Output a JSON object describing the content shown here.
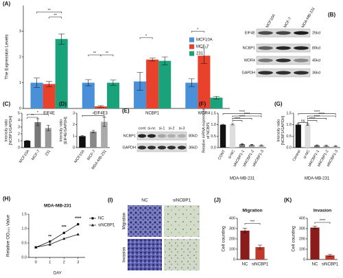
{
  "chart_data": [
    {
      "type": "bar",
      "panel": "(A)",
      "ylabel": "The Expression Levels",
      "categories": [
        "EIF4E",
        "EIF4E3",
        "NCBP1",
        "WDR4"
      ],
      "series": [
        {
          "name": "MCF10A",
          "color": "#4a90d9",
          "values": [
            1.0,
            1.0,
            1.05,
            1.0
          ],
          "errors": [
            0.18,
            0.12,
            0.35,
            0.15
          ]
        },
        {
          "name": "MCF-7",
          "color": "#e8412c",
          "values": [
            0.95,
            0.08,
            1.9,
            2.05
          ],
          "errors": [
            0.1,
            0.03,
            0.06,
            0.3
          ]
        },
        {
          "name": "231",
          "color": "#1aa37a",
          "values": [
            2.7,
            1.0,
            1.85,
            0.42
          ],
          "errors": [
            0.2,
            0.1,
            0.15,
            0.05
          ]
        }
      ],
      "ylim": [
        0,
        4
      ],
      "yticks": [
        0,
        1,
        2,
        3
      ],
      "legend": "right",
      "annotations": [
        "**",
        "**",
        "**",
        "**",
        "*",
        "*"
      ]
    },
    {
      "type": "bar",
      "panel": "(C)",
      "ylabel": [
        "Intensity ratio",
        "[NCBP1/GAPDH]"
      ],
      "categories": [
        "MCF10A",
        "MCF-7",
        "231"
      ],
      "values": [
        1.0,
        3.7,
        2.85
      ],
      "errors": [
        0.05,
        0.5,
        0.4
      ],
      "colors": [
        "#111111",
        "#777777",
        "#999999"
      ],
      "ylim": [
        0,
        5
      ],
      "yticks": [
        0,
        1,
        2,
        3,
        4,
        5
      ],
      "annotations": [
        "**",
        "*"
      ]
    },
    {
      "type": "bar",
      "panel": "(D)",
      "ylabel": [
        "Intensity ratio",
        "[EIF4E/GAPDH]"
      ],
      "categories": [
        "MCF10A",
        "MCF-7",
        "MDA-MB-231"
      ],
      "values": [
        1.0,
        1.4,
        2.25
      ],
      "errors": [
        0.05,
        0.1,
        0.4
      ],
      "colors": [
        "#111111",
        "#888888",
        "#aaaaaa"
      ],
      "ylim": [
        0,
        3
      ],
      "yticks": [
        0,
        1,
        2,
        3
      ],
      "annotations": [
        "*"
      ]
    },
    {
      "type": "bar",
      "panel": "(F)",
      "ylabel": [
        "Relative mRNA expression",
        "of NCBP1"
      ],
      "xlabel": "MDA-MB-231",
      "categories": [
        "CONT",
        "si-NC",
        "siNCBP1-1",
        "siNCBP1-2",
        "siNCBP1-3"
      ],
      "values": [
        1.0,
        1.02,
        0.15,
        0.12,
        0.1
      ],
      "errors": [
        0.02,
        0.03,
        0.02,
        0.02,
        0.02
      ],
      "colors": [
        "#111111",
        "#dddddd",
        "#777777",
        "#999999",
        "#bbbbbb"
      ],
      "ylim": [
        0,
        1.5
      ],
      "yticks": [
        {
          "value": 0,
          "label": "0.0"
        },
        0.5,
        {
          "value": 1,
          "label": "1.0"
        },
        1.5
      ],
      "annotations": [
        "****",
        "****",
        "****",
        "****"
      ]
    },
    {
      "type": "bar",
      "panel": "(G)",
      "ylabel": [
        "Intensity ratio",
        "[NCBP1/GAPDH]"
      ],
      "xlabel": "MDA-MB-231",
      "categories": [
        "Control",
        "si-NC",
        "siNCBP1-1",
        "siNCBP1-2",
        "siNCBP1-3"
      ],
      "values": [
        1.0,
        1.0,
        0.1,
        0.08,
        0.07
      ],
      "errors": [
        0.03,
        0.03,
        0.02,
        0.02,
        0.02
      ],
      "colors": [
        "#111111",
        "#dddddd",
        "#777777",
        "#999999",
        "#bbbbbb"
      ],
      "ylim": [
        0,
        1.5
      ],
      "yticks": [
        {
          "value": 0,
          "label": "0.0"
        },
        0.5,
        {
          "value": 1,
          "label": "1.0"
        },
        1.5
      ],
      "annotations": [
        "ns",
        "****",
        "****",
        "****",
        "****"
      ]
    },
    {
      "type": "line",
      "panel": "(H)",
      "title": "MDA-MB-231",
      "ylabel": "Relative OD₄₅₀ Value",
      "xlabel": "DAY",
      "x": [
        0,
        1,
        2,
        3
      ],
      "xlim": [
        -0.5,
        3.5
      ],
      "xticks": [
        0,
        1,
        2,
        3
      ],
      "series": [
        {
          "name": "NC",
          "color": "#111111",
          "values": [
            0.35,
            0.55,
            0.85,
            1.15
          ]
        },
        {
          "name": "siNCBP1",
          "color": "#111111",
          "values": [
            0.35,
            0.45,
            0.65,
            0.8
          ]
        }
      ],
      "ylim": [
        0,
        1.5
      ],
      "yticks": [
        {
          "value": 0,
          "label": "0.0"
        },
        0.5,
        {
          "value": 1,
          "label": "1.0"
        },
        1.5
      ],
      "legend": "right",
      "annotations": [
        "**",
        "***",
        "****"
      ]
    },
    {
      "type": "bar",
      "panel": "(J)",
      "title": "Migration",
      "ylabel": "Cell counting",
      "categories": [
        "NC",
        "siNCBP1"
      ],
      "values": [
        280,
        120
      ],
      "errors": [
        25,
        20
      ],
      "colors": [
        "#8b1c1c",
        "#c0392b"
      ],
      "ylim": [
        0,
        400
      ],
      "yticks": [
        0,
        100,
        200,
        300,
        400
      ],
      "annotations": [
        "***"
      ]
    },
    {
      "type": "bar",
      "panel": "(K)",
      "title": "Invasion",
      "ylabel": "Cell counting",
      "categories": [
        "NC",
        "siNCBP1"
      ],
      "values": [
        310,
        40
      ],
      "errors": [
        15,
        10
      ],
      "colors": [
        "#8b1c1c",
        "#c0392b"
      ],
      "ylim": [
        0,
        400
      ],
      "yticks": [
        0,
        100,
        200,
        300,
        400
      ],
      "annotations": [
        "****"
      ]
    }
  ],
  "blot_b": {
    "panel": "(B)",
    "lanes": [
      "MCF10A",
      "MCF-7",
      "MDA-MB-231"
    ],
    "rows": [
      {
        "protein": "EIF4E",
        "size": "25kd"
      },
      {
        "protein": "NCBP1",
        "size": "80kd"
      },
      {
        "protein": "WDR4",
        "size": "45kd"
      },
      {
        "protein": "GAPDH",
        "size": "36kd"
      }
    ]
  },
  "blot_e": {
    "panel": "(E)",
    "lanes": [
      "cont",
      "si-nc",
      "si-1",
      "si-2",
      "si-3"
    ],
    "rows": [
      {
        "protein": "NCBP1",
        "size": "80kD"
      },
      {
        "protein": "GAPDH",
        "size": "36kD"
      }
    ]
  },
  "micrographs": {
    "panel": "(I)",
    "columns": [
      "NC",
      "siNCBP1"
    ],
    "rows": [
      "Migration",
      "Invasion"
    ]
  }
}
